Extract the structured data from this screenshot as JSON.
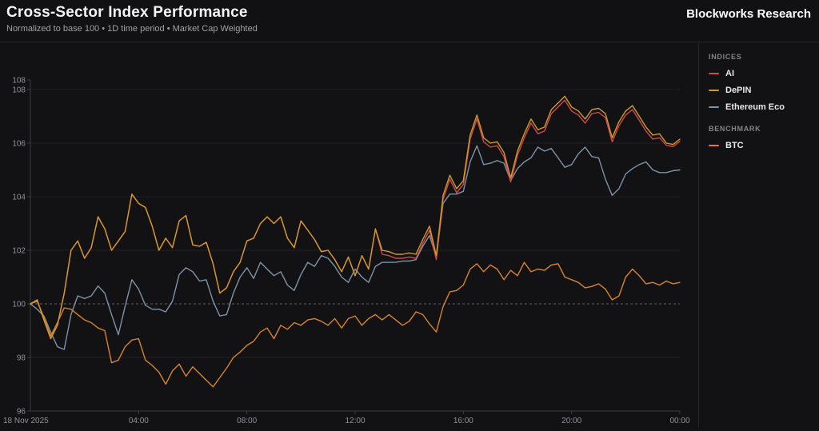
{
  "header": {
    "title": "Cross-Sector Index Performance",
    "subtitle": "Normalized to base 100 • 1D time period • Market Cap Weighted",
    "brand": "Blockworks Research"
  },
  "legend": {
    "sections": [
      {
        "label": "INDICES",
        "items": [
          {
            "name": "AI",
            "color": "#cf4a4a"
          },
          {
            "name": "DePIN",
            "color": "#d19a28"
          },
          {
            "name": "Ethereum Eco",
            "color": "#7d93a6"
          }
        ]
      },
      {
        "label": "BENCHMARK",
        "items": [
          {
            "name": "BTC",
            "color": "#d9822b"
          }
        ]
      }
    ]
  },
  "chart_data": {
    "type": "line",
    "title": "Cross-Sector Index Performance",
    "normalized_base": 100,
    "interval_minutes": 15,
    "x_axis": {
      "start_label": "18 Nov 2025",
      "tick_labels": [
        "04:00",
        "08:00",
        "12:00",
        "16:00",
        "20:00",
        "00:00"
      ],
      "range_hours": [
        0,
        24
      ]
    },
    "y_axis": {
      "ticks": [
        96,
        98,
        100,
        102,
        104,
        106,
        108
      ],
      "top_label": "108",
      "baseline": 100,
      "grid": true,
      "baseline_dashed": true
    },
    "legend_position": "right",
    "series": [
      {
        "name": "AI",
        "color": "#cf4a4a",
        "values": [
          100,
          100.15,
          99.4,
          98.7,
          99.2,
          100.4,
          102,
          102.35,
          101.7,
          102.1,
          103.25,
          102.8,
          102,
          102.35,
          102.7,
          104.1,
          103.75,
          103.6,
          102.9,
          102,
          102.45,
          102.1,
          103.1,
          103.3,
          102.2,
          102.15,
          102.3,
          101.5,
          100.4,
          100.6,
          101.2,
          101.55,
          102.35,
          102.45,
          103,
          103.25,
          103,
          103.25,
          102.45,
          102.1,
          103.1,
          102.75,
          102.4,
          101.95,
          102,
          101.65,
          101.2,
          101.75,
          101.05,
          101.8,
          101.3,
          102.8,
          101.85,
          101.8,
          101.7,
          101.7,
          101.75,
          101.7,
          102.25,
          102.75,
          101.65,
          103.9,
          104.65,
          104.15,
          104.45,
          106.15,
          106.9,
          106.05,
          105.85,
          105.9,
          105.5,
          104.55,
          105.55,
          106.2,
          106.75,
          106.35,
          106.45,
          107.1,
          107.35,
          107.6,
          107.2,
          107.05,
          106.75,
          107.1,
          107.15,
          106.95,
          106.05,
          106.65,
          107.05,
          107.25,
          106.85,
          106.45,
          106.15,
          106.2,
          105.92,
          105.87,
          106.07
        ]
      },
      {
        "name": "DePIN",
        "color": "#d19a28",
        "values": [
          100,
          100.15,
          99.4,
          98.7,
          99.2,
          100.4,
          102,
          102.35,
          101.7,
          102.1,
          103.25,
          102.8,
          102,
          102.35,
          102.7,
          104.1,
          103.75,
          103.6,
          102.9,
          102,
          102.45,
          102.1,
          103.1,
          103.3,
          102.2,
          102.15,
          102.3,
          101.5,
          100.4,
          100.6,
          101.2,
          101.55,
          102.35,
          102.45,
          103,
          103.25,
          103,
          103.25,
          102.45,
          102.1,
          103.1,
          102.75,
          102.4,
          101.95,
          102,
          101.65,
          101.2,
          101.75,
          101.05,
          101.8,
          101.3,
          102.8,
          102,
          101.95,
          101.85,
          101.85,
          101.9,
          101.85,
          102.4,
          102.9,
          101.8,
          104.05,
          104.8,
          104.3,
          104.6,
          106.3,
          107.05,
          106.2,
          106,
          106.05,
          105.65,
          104.7,
          105.7,
          106.35,
          106.9,
          106.5,
          106.6,
          107.25,
          107.5,
          107.75,
          107.35,
          107.2,
          106.9,
          107.25,
          107.3,
          107.1,
          106.2,
          106.8,
          107.2,
          107.4,
          107,
          106.6,
          106.3,
          106.35,
          106,
          105.95,
          106.15
        ]
      },
      {
        "name": "Ethereum Eco",
        "color": "#7d93a6",
        "values": [
          100,
          99.8,
          99.55,
          98.95,
          98.4,
          98.3,
          99.6,
          100.3,
          100.2,
          100.3,
          100.67,
          100.4,
          99.6,
          98.85,
          99.9,
          100.9,
          100.55,
          99.95,
          99.8,
          99.8,
          99.7,
          100.1,
          101.1,
          101.35,
          101.2,
          100.85,
          100.9,
          100.1,
          99.55,
          99.6,
          100.4,
          101,
          101.35,
          100.95,
          101.55,
          101.3,
          101.05,
          101.2,
          100.7,
          100.5,
          101.1,
          101.55,
          101.4,
          101.8,
          101.7,
          101.4,
          101,
          100.8,
          101.3,
          101,
          100.8,
          101.4,
          101.55,
          101.55,
          101.55,
          101.6,
          101.6,
          101.65,
          102.15,
          102.55,
          101.75,
          103.75,
          104.1,
          104.1,
          104.2,
          105.3,
          105.9,
          105.2,
          105.25,
          105.35,
          105.25,
          104.6,
          105.05,
          105.3,
          105.45,
          105.85,
          105.7,
          105.8,
          105.45,
          105.1,
          105.2,
          105.6,
          105.85,
          105.5,
          105.45,
          104.65,
          104.05,
          104.3,
          104.85,
          105.05,
          105.2,
          105.3,
          105,
          104.9,
          104.9,
          104.97,
          105
        ]
      },
      {
        "name": "BTC",
        "color": "#d9822b",
        "values": [
          100,
          100.1,
          99.5,
          98.8,
          99.3,
          99.85,
          99.8,
          99.6,
          99.4,
          99.3,
          99.1,
          99,
          97.8,
          97.9,
          98.4,
          98.65,
          98.7,
          97.9,
          97.7,
          97.45,
          97,
          97.5,
          97.75,
          97.3,
          97.65,
          97.4,
          97.15,
          96.9,
          97.25,
          97.6,
          98,
          98.2,
          98.45,
          98.6,
          98.95,
          99.1,
          98.7,
          99.2,
          99.05,
          99.3,
          99.2,
          99.4,
          99.45,
          99.35,
          99.2,
          99.45,
          99.1,
          99.45,
          99.55,
          99.2,
          99.45,
          99.6,
          99.4,
          99.6,
          99.4,
          99.2,
          99.35,
          99.7,
          99.6,
          99.25,
          98.95,
          99.9,
          100.45,
          100.5,
          100.7,
          101.3,
          101.5,
          101.2,
          101.45,
          101.3,
          100.9,
          101.25,
          101.05,
          101.55,
          101.2,
          101.3,
          101.25,
          101.45,
          101.5,
          101,
          100.9,
          100.8,
          100.6,
          100.65,
          100.75,
          100.55,
          100.15,
          100.3,
          101,
          101.3,
          101.05,
          100.75,
          100.8,
          100.7,
          100.85,
          100.75,
          100.8
        ]
      }
    ]
  }
}
